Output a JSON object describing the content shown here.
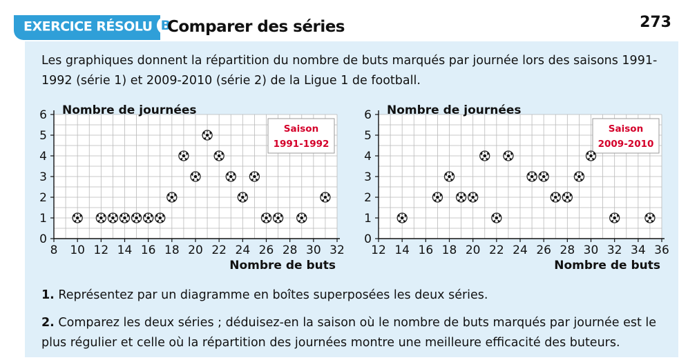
{
  "header": {
    "exercise_label": "EXERCICE RÉSOLU",
    "exercise_letter": "B",
    "title": "Comparer des séries",
    "page_number": "273"
  },
  "intro": "Les graphiques donnent la répartition du nombre de buts marqués par journée lors des saisons 1991-1992 (série 1) et 2009-2010 (série 2) de la Ligue 1 de football.",
  "questions": [
    {
      "num": "1.",
      "text": "Représentez par un diagramme en boîtes superposées les deux séries."
    },
    {
      "num": "2.",
      "text": "Comparez les deux séries ; déduisez-en la saison où le nombre de buts marqués par journée est le plus régulier et celle où la répartition des journées montre une meilleure efficacité des buteurs."
    }
  ],
  "colors": {
    "accent": "#2f9fd8",
    "panel": "#dfeff9",
    "season_text": "#d4002a"
  },
  "chart_data": [
    {
      "type": "scatter",
      "marker": "soccer-ball",
      "ylabel": "Nombre de journées",
      "xlabel": "Nombre de buts",
      "legend_line1": "Saison",
      "legend_line2": "1991-1992",
      "xlim": [
        8,
        32
      ],
      "ylim": [
        0,
        6
      ],
      "x_ticks": [
        8,
        10,
        12,
        14,
        16,
        18,
        20,
        22,
        24,
        26,
        28,
        30,
        32
      ],
      "y_ticks": [
        0,
        1,
        2,
        3,
        4,
        5,
        6
      ],
      "grid": true,
      "legend_position": "top-right",
      "points": [
        {
          "x": 10,
          "y": 1
        },
        {
          "x": 12,
          "y": 1
        },
        {
          "x": 13,
          "y": 1
        },
        {
          "x": 14,
          "y": 1
        },
        {
          "x": 15,
          "y": 1
        },
        {
          "x": 16,
          "y": 1
        },
        {
          "x": 17,
          "y": 1
        },
        {
          "x": 18,
          "y": 2
        },
        {
          "x": 19,
          "y": 4
        },
        {
          "x": 20,
          "y": 3
        },
        {
          "x": 21,
          "y": 5
        },
        {
          "x": 22,
          "y": 4
        },
        {
          "x": 23,
          "y": 3
        },
        {
          "x": 24,
          "y": 2
        },
        {
          "x": 25,
          "y": 3
        },
        {
          "x": 26,
          "y": 1
        },
        {
          "x": 27,
          "y": 1
        },
        {
          "x": 29,
          "y": 1
        },
        {
          "x": 31,
          "y": 2
        }
      ]
    },
    {
      "type": "scatter",
      "marker": "soccer-ball",
      "ylabel": "Nombre de journées",
      "xlabel": "Nombre de buts",
      "legend_line1": "Saison",
      "legend_line2": "2009-2010",
      "xlim": [
        12,
        36
      ],
      "ylim": [
        0,
        6
      ],
      "x_ticks": [
        12,
        14,
        16,
        18,
        20,
        22,
        24,
        26,
        28,
        30,
        32,
        34,
        36
      ],
      "y_ticks": [
        0,
        1,
        2,
        3,
        4,
        5,
        6
      ],
      "grid": true,
      "legend_position": "top-right",
      "points": [
        {
          "x": 14,
          "y": 1
        },
        {
          "x": 17,
          "y": 2
        },
        {
          "x": 18,
          "y": 3
        },
        {
          "x": 19,
          "y": 2
        },
        {
          "x": 20,
          "y": 2
        },
        {
          "x": 21,
          "y": 4
        },
        {
          "x": 22,
          "y": 1
        },
        {
          "x": 23,
          "y": 4
        },
        {
          "x": 25,
          "y": 3
        },
        {
          "x": 26,
          "y": 3
        },
        {
          "x": 27,
          "y": 2
        },
        {
          "x": 28,
          "y": 2
        },
        {
          "x": 29,
          "y": 3
        },
        {
          "x": 30,
          "y": 4
        },
        {
          "x": 32,
          "y": 1
        },
        {
          "x": 35,
          "y": 1
        }
      ]
    }
  ]
}
